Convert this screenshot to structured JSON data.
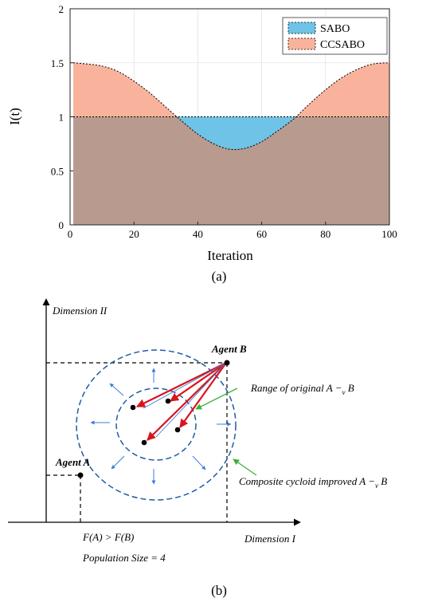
{
  "chart_data": [
    {
      "type": "area",
      "panel_label": "(a)",
      "xlabel": "Iteration",
      "ylabel": "I(t)",
      "xlim": [
        0,
        100
      ],
      "ylim": [
        0,
        2
      ],
      "xticks": [
        0,
        20,
        40,
        60,
        80,
        100
      ],
      "yticks": [
        0,
        0.5,
        1,
        1.5,
        2
      ],
      "grid": true,
      "legend_position": "top-right",
      "series": [
        {
          "name": "SABO",
          "color": "#6ec3e6",
          "x": [
            1,
            100
          ],
          "y": [
            1,
            1
          ]
        },
        {
          "name": "CCSABO",
          "color": "#f9b39c",
          "x": [
            1,
            5,
            10,
            15,
            20,
            25,
            30,
            35,
            40,
            45,
            50,
            55,
            60,
            65,
            70,
            75,
            80,
            85,
            90,
            95,
            100
          ],
          "y": [
            1.5,
            1.49,
            1.47,
            1.42,
            1.33,
            1.22,
            1.09,
            0.96,
            0.84,
            0.75,
            0.7,
            0.71,
            0.77,
            0.87,
            0.98,
            1.12,
            1.25,
            1.36,
            1.44,
            1.49,
            1.5
          ]
        }
      ]
    },
    {
      "type": "diagram",
      "panel_label": "(b)",
      "y_axis_label": "Dimension II",
      "x_axis_label": "Dimension I",
      "agent_a_label": "Agent A",
      "agent_b_label": "Agent B",
      "inner_label": "Range of original A −",
      "inner_label_sub": "v",
      "inner_label_end": " B",
      "outer_label": "Composite cycloid improved A −",
      "outer_label_sub": "v",
      "outer_label_end": " B",
      "condition": "F(A) > F(B)",
      "population": "Population Size = 4",
      "colors": {
        "circle": "#1f5aa6",
        "arrow": "#d9141c",
        "pointer": "#3fae3c",
        "expand": "#3b7dd8"
      }
    }
  ]
}
